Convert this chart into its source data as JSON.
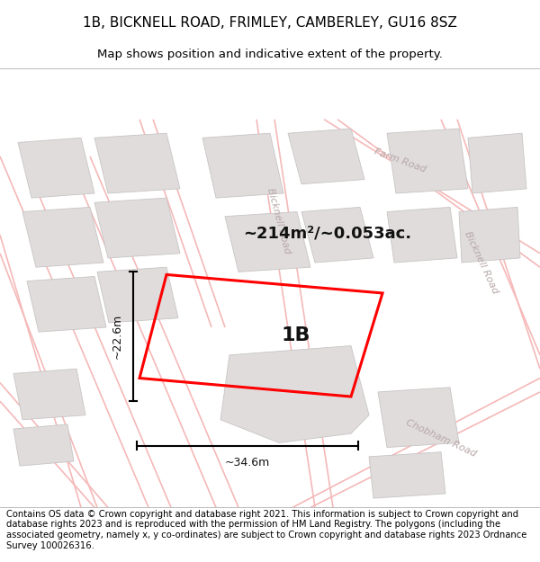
{
  "title_line1": "1B, BICKNELL ROAD, FRIMLEY, CAMBERLEY, GU16 8SZ",
  "title_line2": "Map shows position and indicative extent of the property.",
  "footer_text": "Contains OS data © Crown copyright and database right 2021. This information is subject to Crown copyright and database rights 2023 and is reproduced with the permission of HM Land Registry. The polygons (including the associated geometry, namely x, y co-ordinates) are subject to Crown copyright and database rights 2023 Ordnance Survey 100026316.",
  "area_text": "~214m²/~0.053ac.",
  "label_1b": "1B",
  "dim_height": "~22.6m",
  "dim_width": "~34.6m",
  "road_label_bicknell_top": "Bicknell Road",
  "road_label_farm": "Farm Road",
  "road_label_bicknell_right": "Bicknell Road",
  "road_label_chobham": "Chobham Road",
  "map_bg": "#f2f0f0",
  "plot_color": "#ff0000",
  "road_line_color": "#f5b8b8",
  "road_outline_color": "#e8d0d0",
  "block_fill": "#e0dcdc",
  "block_edge": "#c8c4c4",
  "block_fill2": "#d8d4d4",
  "title_fontsize": 11,
  "subtitle_fontsize": 9.5,
  "footer_fontsize": 7.2,
  "area_fontsize": 13,
  "label_fontsize": 16,
  "dim_fontsize": 9
}
